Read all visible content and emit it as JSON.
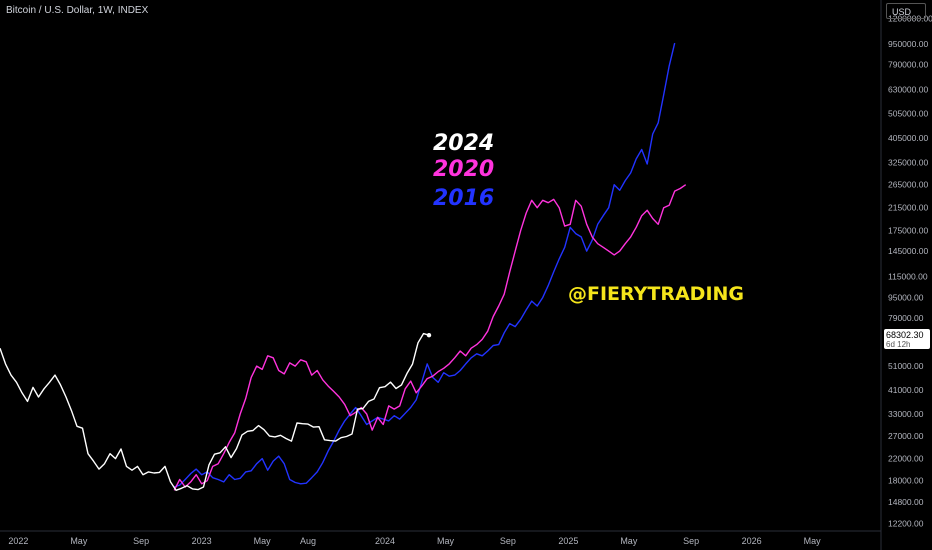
{
  "header": {
    "symbol_line": "Bitcoin / U.S. Dollar, 1W, INDEX"
  },
  "currency_button": "USD",
  "price_tag": {
    "value": "68302.30",
    "countdown": "6d 12h"
  },
  "watermark": "@FIERYTRADING",
  "colors": {
    "y2024": "#ffffff",
    "y2020": "#ff33dd",
    "y2016": "#2233ff",
    "handle": "#f5e51b",
    "axis_text": "#b2b5be"
  },
  "chart_data": {
    "type": "line",
    "scale": "log",
    "ylim": [
      11500,
      1250000
    ],
    "y_ticks": [
      1200000,
      950000,
      790000,
      630000,
      505000,
      405000,
      325000,
      265000,
      215000,
      175000,
      145000,
      115000,
      95000,
      79000,
      63000,
      51000,
      41000,
      33000,
      27000,
      22000,
      18000,
      14800,
      12200
    ],
    "y_tick_labels": [
      "1200000.00",
      "950000.00",
      "790000.00",
      "630000.00",
      "505000.00",
      "405000.00",
      "325000.00",
      "265000.00",
      "215000.00",
      "175000.00",
      "145000.00",
      "115000.00",
      "95000.00",
      "79000.00",
      "63000.00",
      "51000.00",
      "41000.00",
      "33000.00",
      "27000.00",
      "22000.00",
      "18000.00",
      "14800.00",
      "12200.00"
    ],
    "x_ticks": [
      {
        "label": "2022",
        "t": 2022.0
      },
      {
        "label": "May",
        "t": 2022.33
      },
      {
        "label": "Sep",
        "t": 2022.67
      },
      {
        "label": "2023",
        "t": 2023.0
      },
      {
        "label": "May",
        "t": 2023.33
      },
      {
        "label": "Aug",
        "t": 2023.58
      },
      {
        "label": "2024",
        "t": 2024.0
      },
      {
        "label": "May",
        "t": 2024.33
      },
      {
        "label": "Sep",
        "t": 2024.67
      },
      {
        "label": "2025",
        "t": 2025.0
      },
      {
        "label": "May",
        "t": 2025.33
      },
      {
        "label": "Sep",
        "t": 2025.67
      },
      {
        "label": "2026",
        "t": 2026.0
      },
      {
        "label": "May",
        "t": 2026.33
      }
    ],
    "xlim": [
      2021.9,
      2026.7
    ],
    "series": [
      {
        "name": "2024",
        "color": "#ffffff",
        "points": [
          [
            2021.9,
            60000
          ],
          [
            2021.93,
            52000
          ],
          [
            2021.96,
            47000
          ],
          [
            2021.99,
            44000
          ],
          [
            2022.02,
            40000
          ],
          [
            2022.05,
            37000
          ],
          [
            2022.08,
            42000
          ],
          [
            2022.11,
            38500
          ],
          [
            2022.14,
            41500
          ],
          [
            2022.17,
            44000
          ],
          [
            2022.2,
            47000
          ],
          [
            2022.23,
            43000
          ],
          [
            2022.26,
            38500
          ],
          [
            2022.29,
            34000
          ],
          [
            2022.32,
            29500
          ],
          [
            2022.35,
            29000
          ],
          [
            2022.38,
            23000
          ],
          [
            2022.41,
            21500
          ],
          [
            2022.44,
            20000
          ],
          [
            2022.47,
            21000
          ],
          [
            2022.5,
            23000
          ],
          [
            2022.53,
            22000
          ],
          [
            2022.56,
            24000
          ],
          [
            2022.59,
            20500
          ],
          [
            2022.62,
            19800
          ],
          [
            2022.65,
            20500
          ],
          [
            2022.68,
            19000
          ],
          [
            2022.71,
            19500
          ],
          [
            2022.74,
            19300
          ],
          [
            2022.77,
            19400
          ],
          [
            2022.8,
            20500
          ],
          [
            2022.83,
            17800
          ],
          [
            2022.86,
            16500
          ],
          [
            2022.89,
            16800
          ],
          [
            2022.92,
            17200
          ],
          [
            2022.95,
            16700
          ],
          [
            2022.98,
            16600
          ],
          [
            2023.01,
            17000
          ],
          [
            2023.04,
            20800
          ],
          [
            2023.07,
            22900
          ],
          [
            2023.1,
            23200
          ],
          [
            2023.13,
            24500
          ],
          [
            2023.16,
            22200
          ],
          [
            2023.19,
            24100
          ],
          [
            2023.22,
            27300
          ],
          [
            2023.25,
            28200
          ],
          [
            2023.28,
            28400
          ],
          [
            2023.31,
            29700
          ],
          [
            2023.34,
            28600
          ],
          [
            2023.37,
            27000
          ],
          [
            2023.4,
            26800
          ],
          [
            2023.43,
            27200
          ],
          [
            2023.46,
            26400
          ],
          [
            2023.49,
            25800
          ],
          [
            2023.52,
            30400
          ],
          [
            2023.55,
            30200
          ],
          [
            2023.58,
            30100
          ],
          [
            2023.61,
            29300
          ],
          [
            2023.64,
            29400
          ],
          [
            2023.67,
            26100
          ],
          [
            2023.7,
            25900
          ],
          [
            2023.73,
            25800
          ],
          [
            2023.76,
            26600
          ],
          [
            2023.79,
            26900
          ],
          [
            2023.82,
            27500
          ],
          [
            2023.85,
            34500
          ],
          [
            2023.88,
            34700
          ],
          [
            2023.91,
            37000
          ],
          [
            2023.94,
            37800
          ],
          [
            2023.97,
            41900
          ],
          [
            2024.0,
            42300
          ],
          [
            2024.03,
            44100
          ],
          [
            2024.06,
            41600
          ],
          [
            2024.09,
            43000
          ],
          [
            2024.12,
            47700
          ],
          [
            2024.15,
            51900
          ],
          [
            2024.18,
            63000
          ],
          [
            2024.21,
            68500
          ],
          [
            2024.24,
            67500
          ]
        ]
      },
      {
        "name": "2020",
        "color": "#ff33dd",
        "points": [
          [
            2022.85,
            16500
          ],
          [
            2022.88,
            18200
          ],
          [
            2022.91,
            17000
          ],
          [
            2022.94,
            17800
          ],
          [
            2022.97,
            19000
          ],
          [
            2023.0,
            17500
          ],
          [
            2023.03,
            18000
          ],
          [
            2023.06,
            20500
          ],
          [
            2023.09,
            21000
          ],
          [
            2023.12,
            23000
          ],
          [
            2023.15,
            25500
          ],
          [
            2023.18,
            27800
          ],
          [
            2023.21,
            33000
          ],
          [
            2023.24,
            38000
          ],
          [
            2023.27,
            46000
          ],
          [
            2023.3,
            51000
          ],
          [
            2023.33,
            49500
          ],
          [
            2023.36,
            56000
          ],
          [
            2023.39,
            55000
          ],
          [
            2023.42,
            49000
          ],
          [
            2023.45,
            47500
          ],
          [
            2023.48,
            52500
          ],
          [
            2023.51,
            51000
          ],
          [
            2023.54,
            54000
          ],
          [
            2023.57,
            53000
          ],
          [
            2023.6,
            47000
          ],
          [
            2023.63,
            49000
          ],
          [
            2023.66,
            45000
          ],
          [
            2023.69,
            42500
          ],
          [
            2023.72,
            40500
          ],
          [
            2023.75,
            38500
          ],
          [
            2023.78,
            36000
          ],
          [
            2023.81,
            32500
          ],
          [
            2023.84,
            33500
          ],
          [
            2023.87,
            35000
          ],
          [
            2023.9,
            33000
          ],
          [
            2023.93,
            28500
          ],
          [
            2023.96,
            32000
          ],
          [
            2023.99,
            30000
          ],
          [
            2024.02,
            35500
          ],
          [
            2024.05,
            34500
          ],
          [
            2024.08,
            35500
          ],
          [
            2024.11,
            41500
          ],
          [
            2024.14,
            44500
          ],
          [
            2024.17,
            40000
          ],
          [
            2024.2,
            42500
          ],
          [
            2024.23,
            45500
          ],
          [
            2024.26,
            46500
          ],
          [
            2024.29,
            48500
          ],
          [
            2024.32,
            50000
          ],
          [
            2024.35,
            52000
          ],
          [
            2024.38,
            55000
          ],
          [
            2024.41,
            58500
          ],
          [
            2024.44,
            56000
          ],
          [
            2024.47,
            60000
          ],
          [
            2024.5,
            62000
          ],
          [
            2024.53,
            65000
          ],
          [
            2024.56,
            70000
          ],
          [
            2024.59,
            80000
          ],
          [
            2024.62,
            88000
          ],
          [
            2024.65,
            98000
          ],
          [
            2024.68,
            120000
          ],
          [
            2024.71,
            145000
          ],
          [
            2024.74,
            175000
          ],
          [
            2024.77,
            205000
          ],
          [
            2024.8,
            230000
          ],
          [
            2024.83,
            215000
          ],
          [
            2024.86,
            230000
          ],
          [
            2024.89,
            225000
          ],
          [
            2024.92,
            232000
          ],
          [
            2024.95,
            215000
          ],
          [
            2024.98,
            182000
          ],
          [
            2025.01,
            185000
          ],
          [
            2025.04,
            230000
          ],
          [
            2025.07,
            218000
          ],
          [
            2025.1,
            185000
          ],
          [
            2025.13,
            165000
          ],
          [
            2025.16,
            155000
          ],
          [
            2025.19,
            150000
          ],
          [
            2025.22,
            145000
          ],
          [
            2025.25,
            140000
          ],
          [
            2025.28,
            145000
          ],
          [
            2025.31,
            155000
          ],
          [
            2025.34,
            165000
          ],
          [
            2025.37,
            180000
          ],
          [
            2025.4,
            200000
          ],
          [
            2025.43,
            210000
          ],
          [
            2025.46,
            195000
          ],
          [
            2025.49,
            185000
          ],
          [
            2025.52,
            215000
          ],
          [
            2025.55,
            220000
          ],
          [
            2025.58,
            250000
          ],
          [
            2025.61,
            256000
          ],
          [
            2025.64,
            265000
          ]
        ]
      },
      {
        "name": "2016",
        "color": "#2233ff",
        "points": [
          [
            2022.85,
            17000
          ],
          [
            2022.88,
            17300
          ],
          [
            2022.91,
            18200
          ],
          [
            2022.94,
            19200
          ],
          [
            2022.97,
            20000
          ],
          [
            2023.0,
            19000
          ],
          [
            2023.03,
            19500
          ],
          [
            2023.06,
            18500
          ],
          [
            2023.09,
            18200
          ],
          [
            2023.12,
            17800
          ],
          [
            2023.15,
            19000
          ],
          [
            2023.18,
            18200
          ],
          [
            2023.21,
            18400
          ],
          [
            2023.24,
            19500
          ],
          [
            2023.27,
            19700
          ],
          [
            2023.3,
            21000
          ],
          [
            2023.33,
            22000
          ],
          [
            2023.36,
            19800
          ],
          [
            2023.39,
            21500
          ],
          [
            2023.42,
            22500
          ],
          [
            2023.45,
            21000
          ],
          [
            2023.48,
            18200
          ],
          [
            2023.51,
            17700
          ],
          [
            2023.54,
            17500
          ],
          [
            2023.57,
            17600
          ],
          [
            2023.6,
            18500
          ],
          [
            2023.63,
            19500
          ],
          [
            2023.66,
            21200
          ],
          [
            2023.69,
            23600
          ],
          [
            2023.72,
            25800
          ],
          [
            2023.75,
            28500
          ],
          [
            2023.78,
            31000
          ],
          [
            2023.81,
            33000
          ],
          [
            2023.84,
            35000
          ],
          [
            2023.87,
            32500
          ],
          [
            2023.9,
            30000
          ],
          [
            2023.93,
            31000
          ],
          [
            2023.96,
            32000
          ],
          [
            2023.99,
            31500
          ],
          [
            2024.02,
            31000
          ],
          [
            2024.05,
            32500
          ],
          [
            2024.08,
            31500
          ],
          [
            2024.11,
            33200
          ],
          [
            2024.14,
            35000
          ],
          [
            2024.17,
            37500
          ],
          [
            2024.2,
            44000
          ],
          [
            2024.23,
            52000
          ],
          [
            2024.26,
            46000
          ],
          [
            2024.29,
            44000
          ],
          [
            2024.32,
            48000
          ],
          [
            2024.35,
            46500
          ],
          [
            2024.38,
            47000
          ],
          [
            2024.41,
            49000
          ],
          [
            2024.44,
            52000
          ],
          [
            2024.47,
            55000
          ],
          [
            2024.5,
            57000
          ],
          [
            2024.53,
            56000
          ],
          [
            2024.56,
            58500
          ],
          [
            2024.59,
            61500
          ],
          [
            2024.62,
            62000
          ],
          [
            2024.65,
            69000
          ],
          [
            2024.68,
            75000
          ],
          [
            2024.71,
            73000
          ],
          [
            2024.74,
            78000
          ],
          [
            2024.77,
            85000
          ],
          [
            2024.8,
            92000
          ],
          [
            2024.83,
            88000
          ],
          [
            2024.86,
            95000
          ],
          [
            2024.89,
            106000
          ],
          [
            2024.92,
            120000
          ],
          [
            2024.95,
            135000
          ],
          [
            2024.98,
            150000
          ],
          [
            2025.01,
            180000
          ],
          [
            2025.04,
            170000
          ],
          [
            2025.07,
            165000
          ],
          [
            2025.1,
            145000
          ],
          [
            2025.13,
            160000
          ],
          [
            2025.16,
            185000
          ],
          [
            2025.19,
            200000
          ],
          [
            2025.22,
            215000
          ],
          [
            2025.25,
            265000
          ],
          [
            2025.28,
            252000
          ],
          [
            2025.31,
            275000
          ],
          [
            2025.34,
            295000
          ],
          [
            2025.37,
            335000
          ],
          [
            2025.4,
            365000
          ],
          [
            2025.43,
            320000
          ],
          [
            2025.46,
            420000
          ],
          [
            2025.49,
            465000
          ],
          [
            2025.52,
            600000
          ],
          [
            2025.55,
            780000
          ],
          [
            2025.58,
            960000
          ]
        ]
      }
    ],
    "year_labels": [
      {
        "text": "2024",
        "color": "#ffffff"
      },
      {
        "text": "2020",
        "color": "#ff33dd"
      },
      {
        "text": "2016",
        "color": "#2233ff"
      }
    ]
  }
}
